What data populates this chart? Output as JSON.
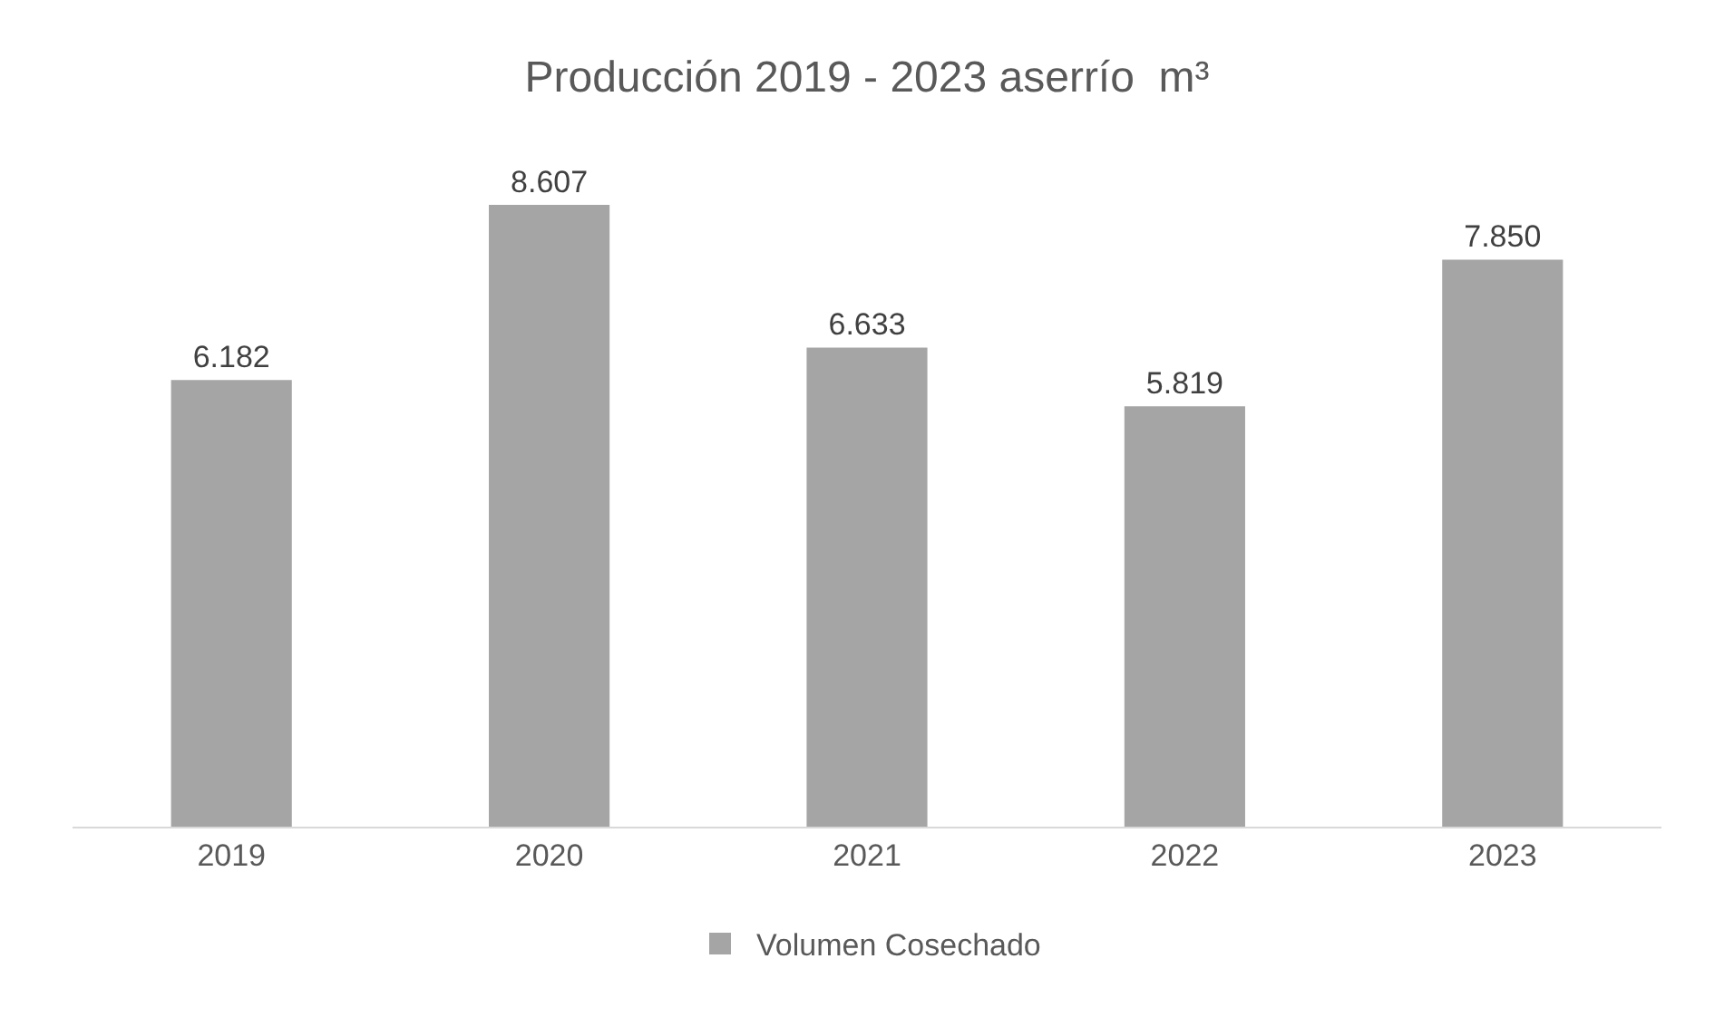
{
  "chart_data": {
    "type": "bar",
    "title": "Producción 2019 - 2023 aserrío  m³",
    "categories": [
      "2019",
      "2020",
      "2021",
      "2022",
      "2023"
    ],
    "series": [
      {
        "name": "Volumen Cosechado",
        "color": "#a5a5a5",
        "values": [
          6182,
          8607,
          6633,
          5819,
          7850
        ],
        "value_labels": [
          "6.182",
          "8.607",
          "6.633",
          "5.819",
          "7.850"
        ]
      }
    ],
    "legend": "bottom",
    "grid": false,
    "tick_labels": "x"
  }
}
